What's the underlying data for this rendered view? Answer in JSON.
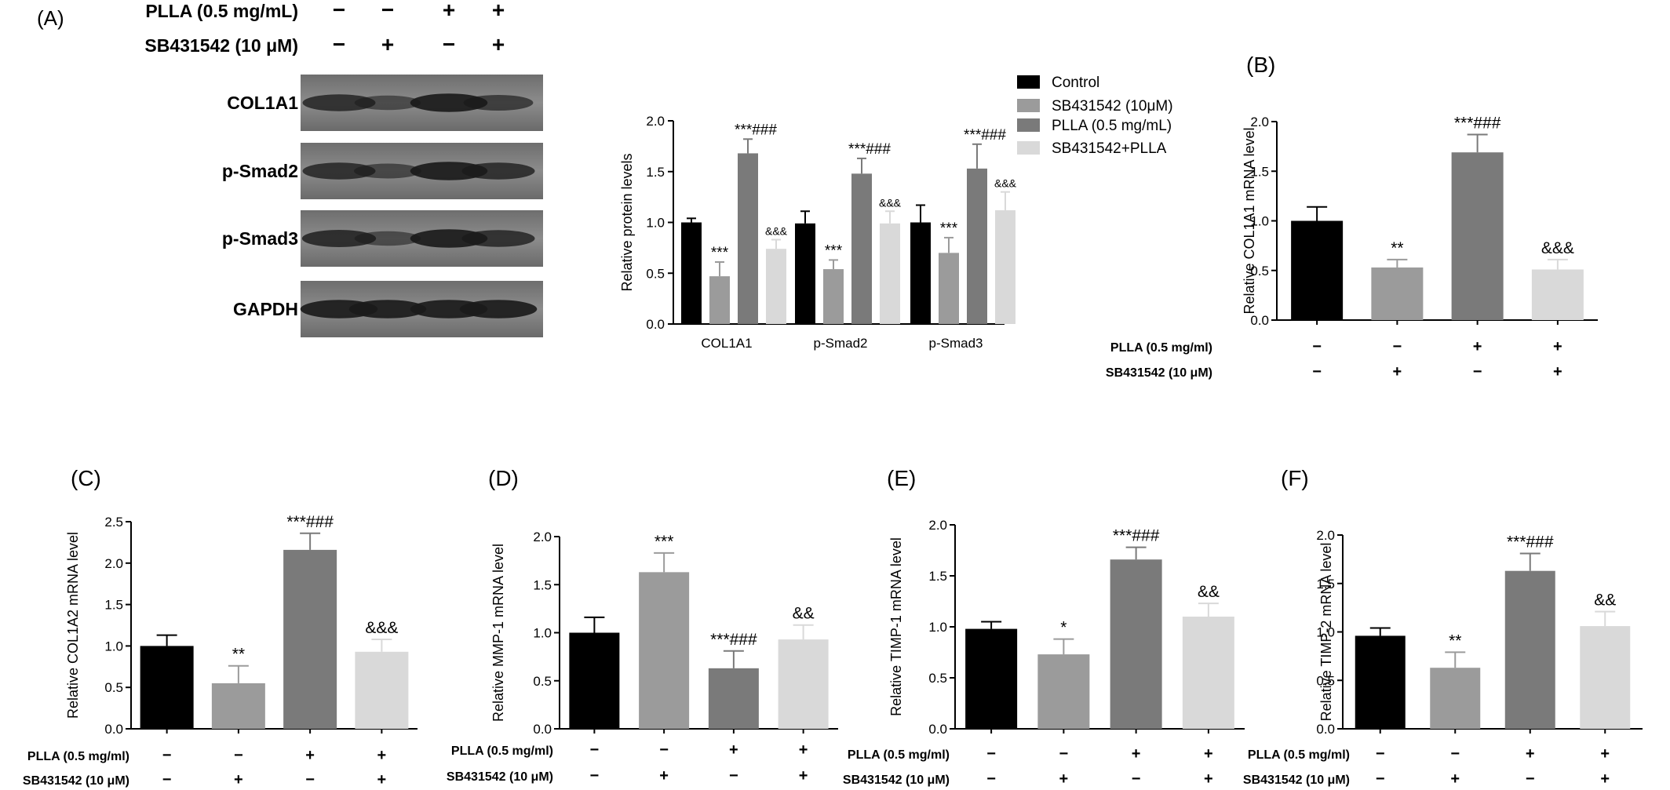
{
  "colors": {
    "control": "#000000",
    "sb": "#9b9b9b",
    "plla": "#7a7a7a",
    "combo": "#d9d9d9"
  },
  "blot": {
    "panel_label": "(A)",
    "header": [
      {
        "label": "PLLA (0.5 mg/mL)",
        "signs": [
          "−",
          "−",
          "+",
          "+"
        ]
      },
      {
        "label": "SB431542 (10 μM)",
        "signs": [
          "−",
          "+",
          "−",
          "+"
        ]
      }
    ],
    "rows": [
      {
        "label": "COL1A1",
        "intensity": [
          0.75,
          0.45,
          0.95,
          0.6
        ]
      },
      {
        "label": "p-Smad2",
        "intensity": [
          0.75,
          0.5,
          0.95,
          0.75
        ]
      },
      {
        "label": "p-Smad3",
        "intensity": [
          0.8,
          0.45,
          0.95,
          0.75
        ]
      },
      {
        "label": "GAPDH",
        "intensity": [
          0.95,
          0.95,
          0.95,
          0.95
        ]
      }
    ]
  },
  "chart_data": [
    {
      "type": "bar",
      "ylabel": "Relative protein levels",
      "ylim": [
        0,
        2.0
      ],
      "yticks": [
        "0.0",
        "0.5",
        "1.0",
        "1.5",
        "2.0"
      ],
      "categories": [
        "COL1A1",
        "p-Smad2",
        "p-Smad3"
      ],
      "legend_position": "top-right",
      "series": [
        {
          "name": "Control",
          "values": [
            1.0,
            0.99,
            1.0
          ],
          "errors": [
            0.04,
            0.12,
            0.17
          ],
          "annotations": [
            "",
            "",
            ""
          ]
        },
        {
          "name": "SB431542 (10μM)",
          "values": [
            0.47,
            0.54,
            0.7
          ],
          "errors": [
            0.14,
            0.09,
            0.15
          ],
          "annotations": [
            "***",
            "***",
            "***"
          ]
        },
        {
          "name": "PLLA (0.5 mg/mL)",
          "values": [
            1.68,
            1.48,
            1.53
          ],
          "errors": [
            0.14,
            0.15,
            0.24
          ],
          "annotations": [
            "***###",
            "***###",
            "***###"
          ]
        },
        {
          "name": "SB431542+PLLA",
          "values": [
            0.74,
            0.99,
            1.12
          ],
          "errors": [
            0.09,
            0.12,
            0.18
          ],
          "annotations": [
            "&&&",
            "&&&",
            "&&&"
          ]
        }
      ]
    },
    {
      "type": "bar",
      "panel_label": "(B)",
      "ylabel": "Relative COL1A1 mRNA level",
      "ylim": [
        0,
        2.0
      ],
      "yticks": [
        "0.0",
        "0.5",
        "1.0",
        "1.5",
        "2.0"
      ],
      "values": [
        1.0,
        0.53,
        1.69,
        0.51
      ],
      "errors": [
        0.14,
        0.08,
        0.18,
        0.1
      ],
      "annotations": [
        "",
        "**",
        "***###",
        "&&&"
      ],
      "conditions": [
        {
          "label": "PLLA (0.5 mg/ml)",
          "signs": [
            "−",
            "−",
            "+",
            "+"
          ]
        },
        {
          "label": "SB431542 (10 μM)",
          "signs": [
            "−",
            "+",
            "−",
            "+"
          ]
        }
      ]
    },
    {
      "type": "bar",
      "panel_label": "(C)",
      "ylabel": "Relative COL1A2 mRNA level",
      "ylim": [
        0,
        2.5
      ],
      "yticks": [
        "0.0",
        "0.5",
        "1.0",
        "1.5",
        "2.0",
        "2.5"
      ],
      "values": [
        1.0,
        0.55,
        2.16,
        0.93
      ],
      "errors": [
        0.13,
        0.21,
        0.2,
        0.15
      ],
      "annotations": [
        "",
        "**",
        "***###",
        "&&&"
      ],
      "conditions": [
        {
          "label": "PLLA (0.5 mg/ml)",
          "signs": [
            "−",
            "−",
            "+",
            "+"
          ]
        },
        {
          "label": "SB431542 (10 μM)",
          "signs": [
            "−",
            "+",
            "−",
            "+"
          ]
        }
      ]
    },
    {
      "type": "bar",
      "panel_label": "(D)",
      "ylabel": "Relative MMP-1 mRNA level",
      "ylim": [
        0,
        2.0
      ],
      "yticks": [
        "0.0",
        "0.5",
        "1.0",
        "1.5",
        "2.0"
      ],
      "values": [
        1.0,
        1.63,
        0.63,
        0.93
      ],
      "errors": [
        0.16,
        0.2,
        0.18,
        0.15
      ],
      "annotations": [
        "",
        "***",
        "***###",
        "&&"
      ],
      "conditions": [
        {
          "label": "PLLA (0.5 mg/ml)",
          "signs": [
            "−",
            "−",
            "+",
            "+"
          ]
        },
        {
          "label": "SB431542 (10 μM)",
          "signs": [
            "−",
            "+",
            "−",
            "+"
          ]
        }
      ]
    },
    {
      "type": "bar",
      "panel_label": "(E)",
      "ylabel": "Relative TIMP-1 mRNA level",
      "ylim": [
        0,
        2.0
      ],
      "yticks": [
        "0.0",
        "0.5",
        "1.0",
        "1.5",
        "2.0"
      ],
      "values": [
        0.98,
        0.73,
        1.66,
        1.1
      ],
      "errors": [
        0.07,
        0.15,
        0.12,
        0.13
      ],
      "annotations": [
        "",
        "*",
        "***###",
        "&&"
      ],
      "conditions": [
        {
          "label": "PLLA (0.5 mg/ml)",
          "signs": [
            "−",
            "−",
            "+",
            "+"
          ]
        },
        {
          "label": "SB431542 (10 μM)",
          "signs": [
            "−",
            "+",
            "−",
            "+"
          ]
        }
      ]
    },
    {
      "type": "bar",
      "panel_label": "(F)",
      "ylabel": "Relative TIMP-2 mRNA level",
      "ylim": [
        0,
        2.0
      ],
      "yticks": [
        "0.0",
        "0.5",
        "1.0",
        "1.5",
        "2.0"
      ],
      "values": [
        0.96,
        0.63,
        1.63,
        1.06
      ],
      "errors": [
        0.08,
        0.16,
        0.18,
        0.15
      ],
      "annotations": [
        "",
        "**",
        "***###",
        "&&"
      ],
      "conditions": [
        {
          "label": "PLLA (0.5 mg/ml)",
          "signs": [
            "−",
            "−",
            "+",
            "+"
          ]
        },
        {
          "label": "SB431542 (10 μM)",
          "signs": [
            "−",
            "+",
            "−",
            "+"
          ]
        }
      ]
    }
  ]
}
